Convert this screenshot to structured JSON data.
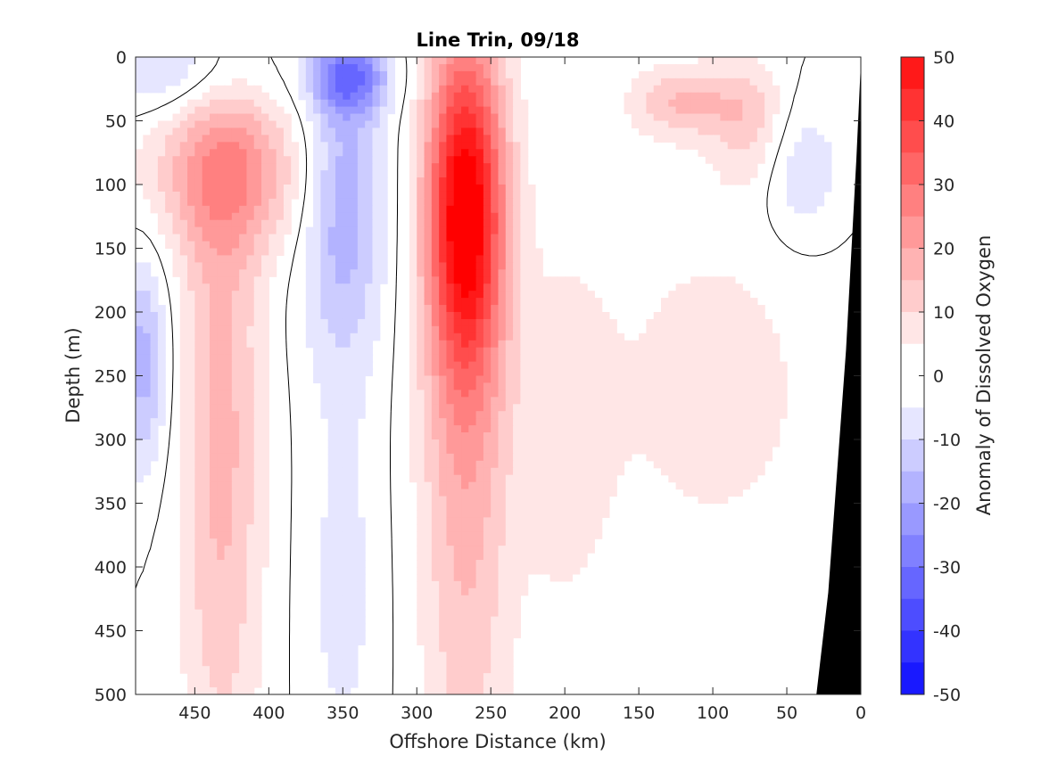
{
  "chart_data": {
    "type": "heatmap",
    "title": "Line Trin, 09/18",
    "xlabel": "Offshore Distance (km)",
    "ylabel": "Depth (m)",
    "colorbar_label": "Anomaly of Dissolved Oxygen",
    "xlim": [
      490,
      0
    ],
    "ylim": [
      0,
      500
    ],
    "x_reversed": true,
    "y_reversed": true,
    "x_ticks": [
      450,
      400,
      350,
      300,
      250,
      200,
      150,
      100,
      50,
      0
    ],
    "y_ticks": [
      0,
      50,
      100,
      150,
      200,
      250,
      300,
      350,
      400,
      450,
      500
    ],
    "colorbar_ticks": [
      50,
      40,
      30,
      20,
      10,
      0,
      -10,
      -20,
      -30,
      -40,
      -50
    ],
    "colorbar_range": [
      -50,
      50
    ],
    "contour_step": 5,
    "zero_contour_color": "#000000",
    "positive_color": "#ff0000",
    "negative_color": "#0000ff",
    "bathymetry_color": "#000000",
    "features": [
      {
        "sign": "positive",
        "peak": 45,
        "x": 267,
        "y": 120,
        "sx": 18,
        "sy": 90
      },
      {
        "sign": "positive",
        "peak": 18,
        "x": 267,
        "y": 280,
        "sx": 22,
        "sy": 230
      },
      {
        "sign": "positive",
        "peak": 20,
        "x": 425,
        "y": 90,
        "sx": 40,
        "sy": 45
      },
      {
        "sign": "positive",
        "peak": 17,
        "x": 432,
        "y": 300,
        "sx": 20,
        "sy": 200
      },
      {
        "sign": "positive",
        "peak": 15,
        "x": 120,
        "y": 35,
        "sx": 25,
        "sy": 20
      },
      {
        "sign": "positive",
        "peak": 12,
        "x": 75,
        "y": 50,
        "sx": 18,
        "sy": 35
      },
      {
        "sign": "positive",
        "peak": 7,
        "x": 100,
        "y": 260,
        "sx": 60,
        "sy": 110
      },
      {
        "sign": "positive",
        "peak": 7,
        "x": 200,
        "y": 300,
        "sx": 22,
        "sy": 110
      },
      {
        "sign": "negative",
        "peak": 20,
        "x": 350,
        "y": 110,
        "sx": 20,
        "sy": 90
      },
      {
        "sign": "negative",
        "peak": 25,
        "x": 345,
        "y": 15,
        "sx": 18,
        "sy": 20
      },
      {
        "sign": "negative",
        "peak": 12,
        "x": 465,
        "y": 10,
        "sx": 40,
        "sy": 25
      },
      {
        "sign": "negative",
        "peak": 18,
        "x": 485,
        "y": 240,
        "sx": 12,
        "sy": 60
      },
      {
        "sign": "negative",
        "peak": 10,
        "x": 40,
        "y": 90,
        "sx": 20,
        "sy": 40
      },
      {
        "sign": "negative",
        "peak": 7,
        "x": 350,
        "y": 420,
        "sx": 18,
        "sy": 110
      }
    ]
  }
}
